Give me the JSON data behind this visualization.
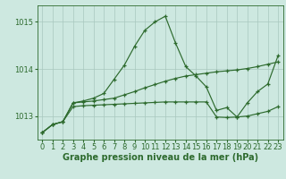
{
  "title": "Graphe pression niveau de la mer (hPa)",
  "hours": [
    0,
    1,
    2,
    3,
    4,
    5,
    6,
    7,
    8,
    9,
    10,
    11,
    12,
    13,
    14,
    15,
    16,
    17,
    18,
    19,
    20,
    21,
    22,
    23
  ],
  "line_spiky": [
    1012.65,
    1012.82,
    1012.88,
    1013.28,
    1013.32,
    1013.38,
    1013.48,
    1013.78,
    1014.08,
    1014.48,
    1014.82,
    1015.0,
    1015.12,
    1014.55,
    1014.05,
    1013.85,
    1013.62,
    1013.12,
    1013.18,
    1012.98,
    1013.28,
    1013.52,
    1013.68,
    1014.28
  ],
  "line_diag": [
    1012.65,
    1012.82,
    1012.88,
    1013.28,
    1013.3,
    1013.32,
    1013.35,
    1013.38,
    1013.45,
    1013.52,
    1013.6,
    1013.67,
    1013.74,
    1013.8,
    1013.85,
    1013.88,
    1013.91,
    1013.94,
    1013.96,
    1013.98,
    1014.01,
    1014.05,
    1014.1,
    1014.15
  ],
  "line_flat": [
    1012.65,
    1012.82,
    1012.88,
    1013.2,
    1013.22,
    1013.23,
    1013.24,
    1013.25,
    1013.26,
    1013.27,
    1013.28,
    1013.29,
    1013.3,
    1013.3,
    1013.3,
    1013.3,
    1013.3,
    1012.98,
    1012.97,
    1012.98,
    1013.0,
    1013.05,
    1013.1,
    1013.2
  ],
  "line_color": "#2d6a2d",
  "bg_color": "#cde8e0",
  "grid_color": "#a8c8be",
  "ylim": [
    1012.5,
    1015.35
  ],
  "yticks": [
    1013,
    1014,
    1015
  ],
  "label_fontsize": 7.0,
  "tick_fontsize": 6.0
}
